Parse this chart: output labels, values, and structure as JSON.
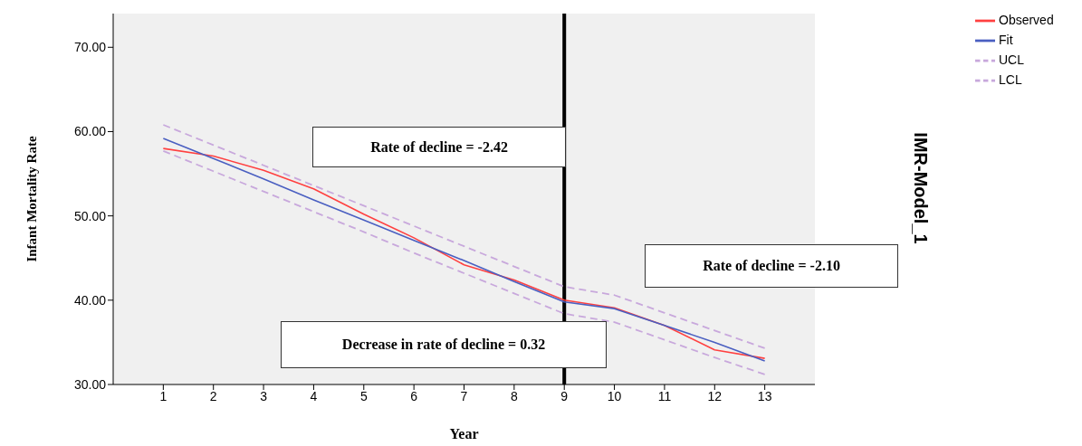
{
  "chart_data": {
    "type": "line",
    "xlabel": "Year",
    "ylabel": "Infant Mortality Rate",
    "x": [
      1,
      2,
      3,
      4,
      5,
      6,
      7,
      8,
      9,
      10,
      11,
      12,
      13
    ],
    "series": [
      {
        "name": "Observed",
        "color": "#ff4040",
        "values": [
          58.0,
          57.1,
          55.4,
          53.2,
          50.2,
          47.4,
          44.2,
          42.4,
          40.0,
          39.1,
          37.0,
          34.1,
          33.1
        ]
      },
      {
        "name": "Fit",
        "color": "#4a5fc1",
        "values": [
          59.2,
          56.8,
          54.4,
          51.9,
          49.5,
          47.1,
          44.7,
          42.2,
          39.8,
          39.0,
          37.0,
          35.0,
          32.8
        ]
      },
      {
        "name": "UCL",
        "color": "#c8a8dc",
        "line_style": "dashed",
        "values": [
          60.8,
          58.4,
          56.0,
          53.6,
          51.2,
          48.8,
          46.4,
          44.0,
          41.6,
          40.6,
          38.5,
          36.4,
          34.3
        ]
      },
      {
        "name": "LCL",
        "color": "#c8a8dc",
        "line_style": "dashed",
        "values": [
          57.7,
          55.3,
          52.9,
          50.5,
          48.1,
          45.6,
          43.2,
          40.8,
          38.4,
          37.4,
          35.3,
          33.2,
          31.2
        ]
      }
    ],
    "xlim": [
      0,
      14
    ],
    "xticks": [
      1,
      2,
      3,
      4,
      5,
      6,
      7,
      8,
      9,
      10,
      11,
      12,
      13
    ],
    "ylim": [
      30,
      74
    ],
    "yticks": [
      {
        "value": 30,
        "label": "30.00"
      },
      {
        "value": 40,
        "label": "40.00"
      },
      {
        "value": 50,
        "label": "50.00"
      },
      {
        "value": 60,
        "label": "60.00"
      },
      {
        "value": 70,
        "label": "70.00"
      }
    ],
    "ref_lines": [
      {
        "axis": "x",
        "value": 9,
        "color": "#000000"
      }
    ],
    "annotations": [
      "Rate of decline = -2.42",
      "Rate of decline = -2.10",
      "Decrease in rate of decline = 0.32",
      "IMR-Model_1"
    ],
    "grid": false,
    "legend": "top right",
    "marker": "none",
    "line_style": "solid"
  }
}
